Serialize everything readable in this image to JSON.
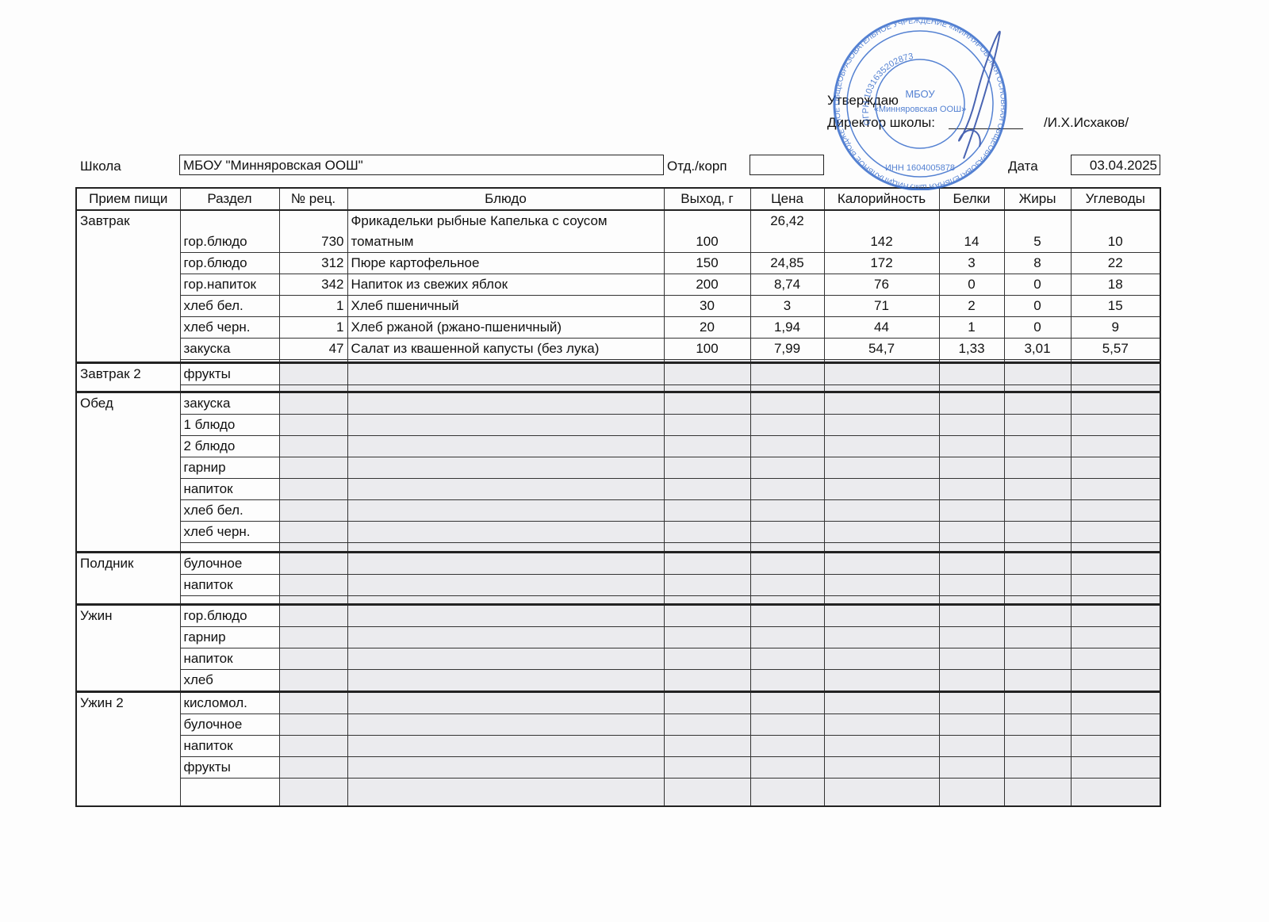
{
  "header": {
    "approve_title": "Утверждаю",
    "director_label": "Директор школы:",
    "director_name": "/И.Х.Исхаков/",
    "school_label": "Школа",
    "school_name": "МБОУ \"Минняровская ООШ\"",
    "department_label": "Отд./корп",
    "date_label": "Дата",
    "date": "03.04.2025"
  },
  "stamp": {
    "ring_text": "МУНИЦИПАЛЬНОЕ БЮДЖЕТНОЕ ОБЩЕОБРАЗОВАТЕЛЬНОЕ УЧРЕЖДЕНИЕ «МИННЯРОВСКАЯ ОСНОВНАЯ ОБЩЕОБРАЗОВАТЕЛЬНАЯ ШКОЛА» АКТАНЫШСКОГО МУНИЦИПАЛЬНОГО РАЙОНА РЕСПУБЛИКИ ТАТАРСТАН",
    "ogrn": "ОГРН 1031635202873",
    "inn": "ИНН 1604005878",
    "org_short": "МБОУ",
    "org_name": "«Минняровская ООШ»"
  },
  "table": {
    "columns": [
      "Прием пищи",
      "Раздел",
      "№ рец.",
      "Блюдо",
      "Выход, г",
      "Цена",
      "Калорийность",
      "Белки",
      "Жиры",
      "Углеводы"
    ],
    "meals": [
      {
        "name": "Завтрак",
        "rows": [
          {
            "section": "гор.блюдо",
            "recipe": "730",
            "dish": "Фрикадельки рыбные Капелька с соусом томатным",
            "yield": "100",
            "price": "26,42",
            "kcal": "142",
            "protein": "14",
            "fat": "5",
            "carbs": "10"
          },
          {
            "section": "гор.блюдо",
            "recipe": "312",
            "dish": "Пюре картофельное",
            "yield": "150",
            "price": "24,85",
            "kcal": "172",
            "protein": "3",
            "fat": "8",
            "carbs": "22"
          },
          {
            "section": "гор.напиток",
            "recipe": "342",
            "dish": "Напиток из свежих яблок",
            "yield": "200",
            "price": "8,74",
            "kcal": "76",
            "protein": "0",
            "fat": "0",
            "carbs": "18"
          },
          {
            "section": "хлеб бел.",
            "recipe": "1",
            "dish": "Хлеб пшеничный",
            "yield": "30",
            "price": "3",
            "kcal": "71",
            "protein": "2",
            "fat": "0",
            "carbs": "15"
          },
          {
            "section": "хлеб черн.",
            "recipe": "1",
            "dish": "Хлеб ржаной (ржано-пшеничный)",
            "yield": "20",
            "price": "1,94",
            "kcal": "44",
            "protein": "1",
            "fat": "0",
            "carbs": "9"
          },
          {
            "section": "закуска",
            "recipe": "47",
            "dish": "Салат из квашенной капусты (без лука)",
            "yield": "100",
            "price": "7,99",
            "kcal": "54,7",
            "protein": "1,33",
            "fat": "3,01",
            "carbs": "5,57"
          }
        ]
      },
      {
        "name": "Завтрак 2",
        "rows": [
          {
            "section": "фрукты"
          }
        ]
      },
      {
        "name": "Обед",
        "rows": [
          {
            "section": "закуска"
          },
          {
            "section": "1 блюдо"
          },
          {
            "section": "2 блюдо"
          },
          {
            "section": "гарнир"
          },
          {
            "section": "напиток"
          },
          {
            "section": "хлеб бел."
          },
          {
            "section": "хлеб черн."
          }
        ]
      },
      {
        "name": "Полдник",
        "rows": [
          {
            "section": "булочное"
          },
          {
            "section": "напиток"
          }
        ]
      },
      {
        "name": "Ужин",
        "rows": [
          {
            "section": "гор.блюдо"
          },
          {
            "section": "гарнир"
          },
          {
            "section": "напиток"
          },
          {
            "section": "хлеб"
          }
        ]
      },
      {
        "name": "Ужин 2",
        "rows": [
          {
            "section": "кисломол."
          },
          {
            "section": "булочное"
          },
          {
            "section": "напиток"
          },
          {
            "section": "фрукты"
          }
        ]
      }
    ]
  }
}
